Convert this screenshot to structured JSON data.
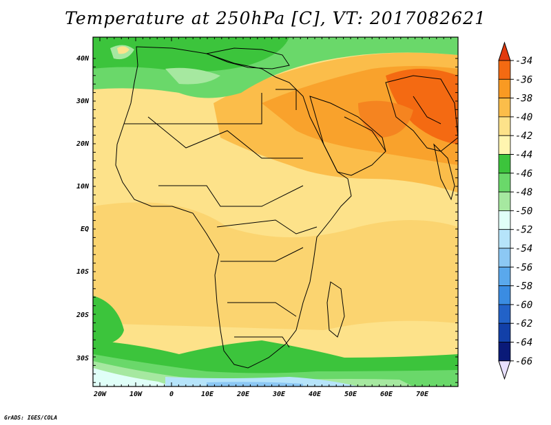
{
  "title": "Temperature at 250hPa [C], VT: 2017082621",
  "credit": "GrADS: IGES/COLA",
  "map": {
    "lon_labels": [
      "20W",
      "10W",
      "0",
      "10E",
      "20E",
      "30E",
      "40E",
      "50E",
      "60E",
      "70E"
    ],
    "lat_labels": [
      "40N",
      "30N",
      "20N",
      "10N",
      "EQ",
      "10S",
      "20S",
      "30S"
    ],
    "lon_range": [
      -22,
      80
    ],
    "lat_range": [
      -37,
      45
    ]
  },
  "colorbar": {
    "labels": [
      "-34",
      "-36",
      "-38",
      "-40",
      "-42",
      "-44",
      "-46",
      "-48",
      "-50",
      "-52",
      "-54",
      "-56",
      "-58",
      "-60",
      "-62",
      "-64",
      "-66"
    ],
    "colors": [
      "#e23a0e",
      "#f46a12",
      "#f99a22",
      "#fbbd4a",
      "#fde28a",
      "#fff5b0",
      "#3cc43c",
      "#6ad86a",
      "#a6e8a0",
      "#e0fff8",
      "#b6e4fa",
      "#8cc8f4",
      "#5aa8ec",
      "#3a8ce2",
      "#2262c8",
      "#1240a8",
      "#0a1a78",
      "#e8e0ff"
    ]
  }
}
